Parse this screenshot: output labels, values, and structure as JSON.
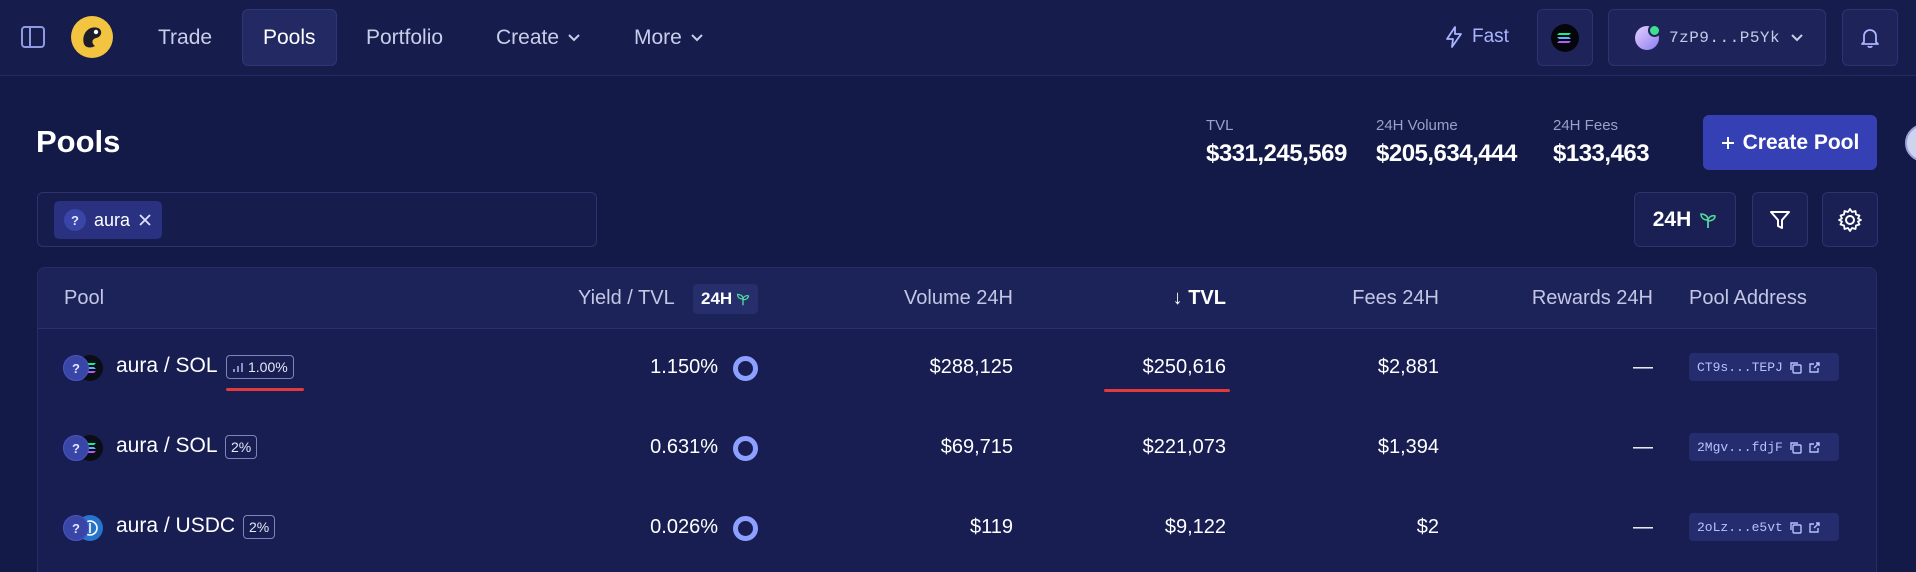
{
  "nav": {
    "items": [
      {
        "label": "Trade",
        "active": false,
        "dropdown": false
      },
      {
        "label": "Pools",
        "active": true,
        "dropdown": false
      },
      {
        "label": "Portfolio",
        "active": false,
        "dropdown": false
      },
      {
        "label": "Create",
        "active": false,
        "dropdown": true
      },
      {
        "label": "More",
        "active": false,
        "dropdown": true
      }
    ],
    "speed_label": "Fast",
    "wallet_label": "7zP9...P5Yk"
  },
  "header": {
    "title": "Pools",
    "stats": [
      {
        "label": "TVL",
        "value": "$331,245,569"
      },
      {
        "label": "24H Volume",
        "value": "$205,634,444"
      },
      {
        "label": "24H Fees",
        "value": "$133,463"
      }
    ],
    "create_label": "Create Pool"
  },
  "search": {
    "chip_icon": "?",
    "chip_label": "aura"
  },
  "toolbar": {
    "period_label": "24H"
  },
  "table": {
    "columns": {
      "pool": "Pool",
      "yield": "Yield / TVL",
      "yield_period": "24H",
      "volume": "Volume 24H",
      "tvl": "TVL",
      "tvl_sort": "↓",
      "fees": "Fees 24H",
      "rewards": "Rewards 24H",
      "address": "Pool Address"
    },
    "rows": [
      {
        "pair": "aura / SOL",
        "fee": "1.00%",
        "fee_has_chart_icon": true,
        "yield": "1.150%",
        "volume": "$288,125",
        "tvl": "$250,616",
        "fees": "$2,881",
        "rewards": "—",
        "address": "CT9s...TEPJ",
        "token_b": "sol"
      },
      {
        "pair": "aura / SOL",
        "fee": "2%",
        "fee_has_chart_icon": false,
        "yield": "0.631%",
        "volume": "$69,715",
        "tvl": "$221,073",
        "fees": "$1,394",
        "rewards": "—",
        "address": "2Mgv...fdjF",
        "token_b": "sol"
      },
      {
        "pair": "aura / USDC",
        "fee": "2%",
        "fee_has_chart_icon": false,
        "yield": "0.026%",
        "volume": "$119",
        "tvl": "$9,122",
        "fees": "$2",
        "rewards": "—",
        "address": "2oLz...e5vt",
        "token_b": "usdc"
      }
    ]
  },
  "colors": {
    "accent": "#3540b4",
    "background": "#141a47",
    "link": "#aab4ff",
    "highlight_red": "#e03a3a"
  },
  "icons": [
    "sidebar-toggle-icon",
    "logo-icon",
    "chevron-down-icon",
    "lightning-icon",
    "solana-icon",
    "bell-icon",
    "plus-icon",
    "close-icon",
    "sprout-icon",
    "filter-icon",
    "gear-icon",
    "copy-icon",
    "external-link-icon",
    "bar-chart-icon"
  ]
}
